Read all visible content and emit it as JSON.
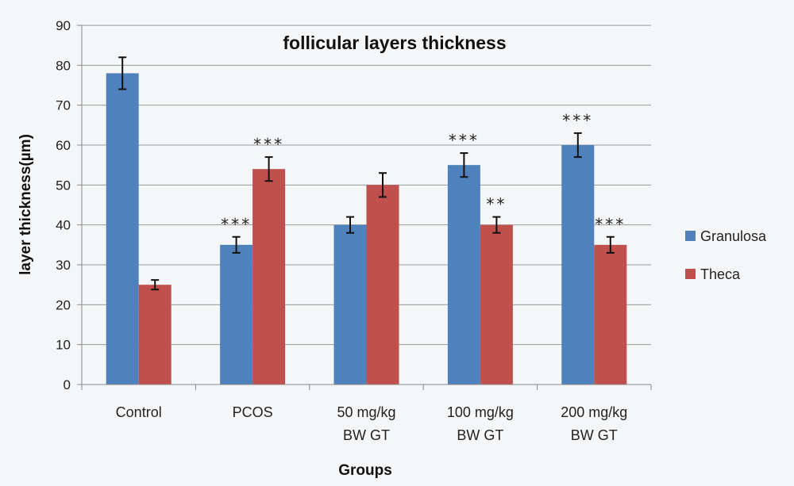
{
  "chart_data": {
    "type": "bar",
    "title": "follicular layers thickness",
    "xlabel": "Groups",
    "ylabel": "layer thickness(µm)",
    "ylim": [
      0,
      90
    ],
    "yticks": [
      0,
      10,
      20,
      30,
      40,
      50,
      60,
      70,
      80,
      90
    ],
    "grid": true,
    "legend_position": "right",
    "categories": [
      [
        "Control"
      ],
      [
        "PCOS"
      ],
      [
        "50 mg/kg",
        "BW GT"
      ],
      [
        "100 mg/kg",
        "BW GT"
      ],
      [
        "200 mg/kg",
        "BW GT"
      ]
    ],
    "series": [
      {
        "name": "Granulosa",
        "color": "#4f81bd",
        "values": [
          78,
          35,
          40,
          55,
          60
        ],
        "errors": [
          4,
          2,
          2,
          3,
          3
        ],
        "significance": [
          "",
          "***",
          "",
          "***",
          "***"
        ]
      },
      {
        "name": "Theca",
        "color": "#c0504d",
        "values": [
          25,
          54,
          50,
          40,
          35
        ],
        "errors": [
          1.2,
          3,
          3,
          2,
          2
        ],
        "significance": [
          "",
          "***",
          "",
          "**",
          "***"
        ]
      }
    ]
  }
}
